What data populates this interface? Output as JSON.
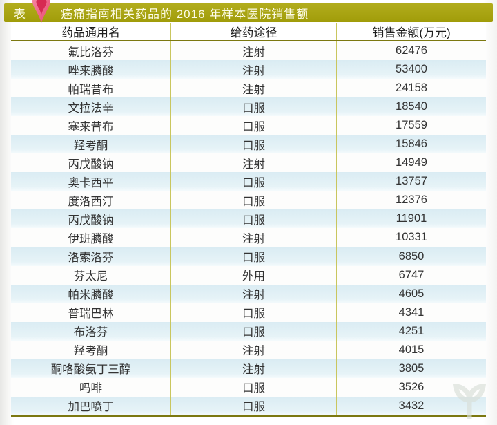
{
  "title_bar": {
    "prefix": "表",
    "title": "癌痛指南相关药品的 2016 年样本医院销售额"
  },
  "table": {
    "columns": [
      "药品通用名",
      "给药途径",
      "销售金额(万元)"
    ],
    "rows": [
      [
        "氟比洛芬",
        "注射",
        "62476"
      ],
      [
        "唑来膦酸",
        "注射",
        "53400"
      ],
      [
        "帕瑞昔布",
        "注射",
        "24158"
      ],
      [
        "文拉法辛",
        "口服",
        "18540"
      ],
      [
        "塞来昔布",
        "口服",
        "17559"
      ],
      [
        "羟考酮",
        "口服",
        "15846"
      ],
      [
        "丙戊酸钠",
        "注射",
        "14949"
      ],
      [
        "奥卡西平",
        "口服",
        "13757"
      ],
      [
        "度洛西汀",
        "口服",
        "12376"
      ],
      [
        "丙戊酸钠",
        "口服",
        "11901"
      ],
      [
        "伊班膦酸",
        "注射",
        "10331"
      ],
      [
        "洛索洛芬",
        "口服",
        "6850"
      ],
      [
        "芬太尼",
        "外用",
        "6747"
      ],
      [
        "帕米膦酸",
        "注射",
        "4605"
      ],
      [
        "普瑞巴林",
        "口服",
        "4341"
      ],
      [
        "布洛芬",
        "口服",
        "4251"
      ],
      [
        "羟考酮",
        "注射",
        "4015"
      ],
      [
        "酮咯酸氨丁三醇",
        "注射",
        "3805"
      ],
      [
        "吗啡",
        "口服",
        "3526"
      ],
      [
        "加巴喷丁",
        "口服",
        "3432"
      ]
    ]
  },
  "chart_data": {
    "type": "table",
    "title": "癌痛指南相关药品的 2016 年样本医院销售额",
    "columns": [
      "药品通用名",
      "给药途径",
      "销售金额(万元)"
    ],
    "drugs": [
      "氟比洛芬",
      "唑来膦酸",
      "帕瑞昔布",
      "文拉法辛",
      "塞来昔布",
      "羟考酮",
      "丙戊酸钠",
      "奥卡西平",
      "度洛西汀",
      "丙戊酸钠",
      "伊班膦酸",
      "洛索洛芬",
      "芬太尼",
      "帕米膦酸",
      "普瑞巴林",
      "布洛芬",
      "羟考酮",
      "酮咯酸氨丁三醇",
      "吗啡",
      "加巴喷丁"
    ],
    "routes": [
      "注射",
      "注射",
      "注射",
      "口服",
      "口服",
      "口服",
      "注射",
      "口服",
      "口服",
      "口服",
      "注射",
      "口服",
      "外用",
      "注射",
      "口服",
      "口服",
      "注射",
      "注射",
      "口服",
      "口服"
    ],
    "sales_wan_yuan": [
      62476,
      53400,
      24158,
      18540,
      17559,
      15846,
      14949,
      13757,
      12376,
      11901,
      10331,
      6850,
      6747,
      4605,
      4341,
      4251,
      4015,
      3805,
      3526,
      3432
    ]
  },
  "colors": {
    "header_bar": "#a8a30f",
    "stripe_blue": "#daecf3",
    "border_olive": "#7c7810",
    "pin_outer": "#ee6387",
    "pin_inner": "#d62a52"
  },
  "icons": {
    "pin": "map-pin-icon",
    "watermark": "sprout-logo-watermark-icon"
  }
}
